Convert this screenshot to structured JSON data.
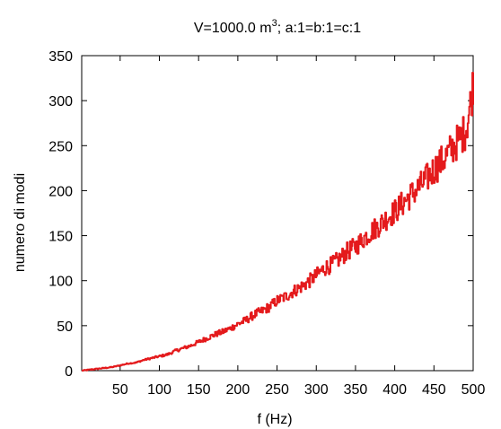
{
  "chart_data": {
    "type": "line",
    "title": {
      "base": "V=1000.0 m",
      "sup": "3",
      "rest": "; a:1=b:1=c:1"
    },
    "xlabel": "f (Hz)",
    "ylabel": "numero di modi",
    "xlim": [
      1,
      500
    ],
    "ylim": [
      0,
      350
    ],
    "xticks": [
      50,
      100,
      150,
      200,
      250,
      300,
      350,
      400,
      450,
      500
    ],
    "yticks": [
      0,
      50,
      100,
      150,
      200,
      250,
      300,
      350
    ],
    "grid": false,
    "legend": "none",
    "line_color": "#e41a1c",
    "series": [
      {
        "x": [
          1,
          10,
          20,
          30,
          40,
          50,
          60,
          70,
          80,
          90,
          100,
          110,
          120,
          130,
          140,
          150,
          160,
          170,
          180,
          190,
          200,
          210,
          220,
          230,
          240,
          250,
          260,
          270,
          280,
          290,
          300,
          310,
          320,
          330,
          340,
          350,
          360,
          370,
          380,
          390,
          400,
          410,
          420,
          430,
          440,
          450,
          460,
          470,
          480,
          490,
          495,
          500
        ],
        "values": [
          0,
          1,
          2,
          3,
          4,
          6,
          8,
          9,
          12,
          14,
          16,
          18,
          22,
          25,
          28,
          32,
          36,
          40,
          43,
          47,
          52,
          56,
          62,
          66,
          71,
          78,
          82,
          88,
          93,
          99,
          106,
          114,
          118,
          125,
          133,
          138,
          147,
          155,
          162,
          170,
          177,
          186,
          195,
          203,
          213,
          224,
          233,
          244,
          255,
          267,
          290,
          320
        ]
      }
    ]
  }
}
